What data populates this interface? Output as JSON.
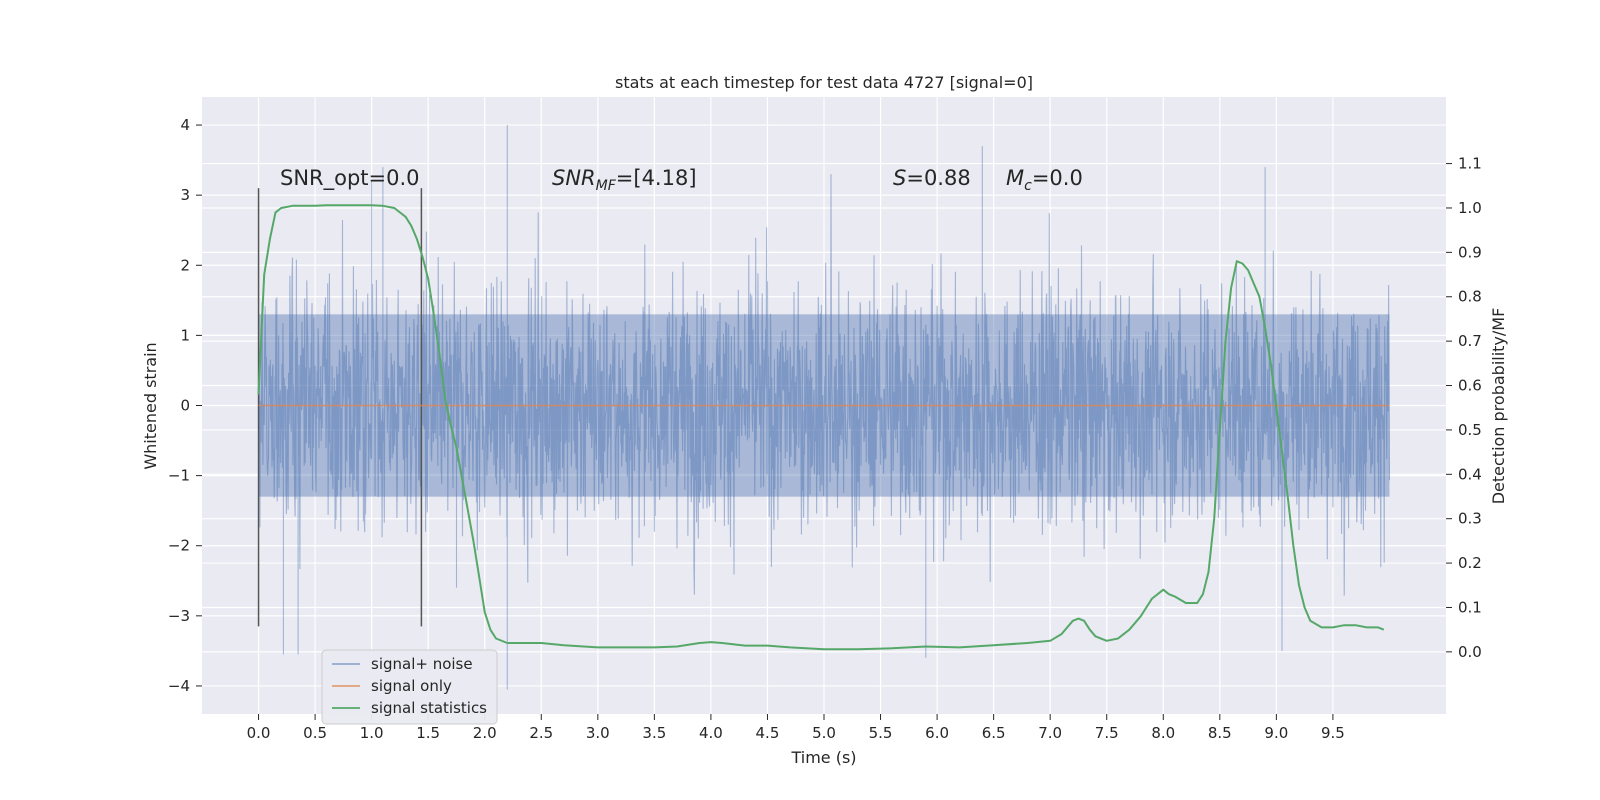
{
  "chart_data": {
    "type": "line",
    "title": "stats at each timestep for test data 4727 [signal=0]",
    "xlabel": "Time (s)",
    "ylabel": "Whitened strain",
    "y2label": "Detection probability/MF",
    "xlim": [
      -0.5,
      10.5
    ],
    "ylim": [
      -4.4,
      4.4
    ],
    "y2lim": [
      -0.14,
      1.25
    ],
    "xticks": [
      "0.0",
      "0.5",
      "1.0",
      "1.5",
      "2.0",
      "2.5",
      "3.0",
      "3.5",
      "4.0",
      "4.5",
      "5.0",
      "5.5",
      "6.0",
      "6.5",
      "7.0",
      "7.5",
      "8.0",
      "8.5",
      "9.0",
      "9.5"
    ],
    "yticks": [
      "4",
      "3",
      "2",
      "1",
      "0",
      "−1",
      "−2",
      "−3",
      "−4"
    ],
    "y2ticks": [
      "1.1",
      "1.0",
      "0.9",
      "0.8",
      "0.7",
      "0.6",
      "0.5",
      "0.4",
      "0.3",
      "0.2",
      "0.1",
      "0.0"
    ],
    "grid": true,
    "legend_position": "lower-left",
    "annotations": {
      "snr_opt": "SNR_opt=0.0",
      "snr_mf_base": "SNR",
      "snr_mf_sub": "MF",
      "snr_mf_value": "=[4.18]",
      "s_label": "S",
      "s_value": "=0.88",
      "mc_base": "M",
      "mc_sub": "c",
      "mc_value": "=0.0"
    },
    "vlines": [
      0.0,
      1.44
    ],
    "series": [
      {
        "name": "signal+ noise",
        "color": "#4c72b0",
        "x_range": [
          0.0,
          10.0
        ],
        "envelope_y": [
          -1.3,
          1.3
        ],
        "extremes": [
          [
            2.2,
            4.0
          ],
          [
            2.2,
            -4.05
          ],
          [
            0.35,
            -3.55
          ],
          [
            0.22,
            -3.55
          ],
          [
            5.9,
            -3.6
          ],
          [
            9.05,
            -3.5
          ],
          [
            8.9,
            3.4
          ],
          [
            6.4,
            3.7
          ],
          [
            1.1,
            3.4
          ],
          [
            1.0,
            3.2
          ],
          [
            1.75,
            -2.6
          ]
        ]
      },
      {
        "name": "signal only",
        "color": "#dd8452",
        "x": [
          0.0,
          10.0
        ],
        "y": [
          0.0,
          0.0
        ]
      },
      {
        "name": "signal statistics",
        "color": "#55a868",
        "axis": "right",
        "x": [
          0.0,
          0.05,
          0.1,
          0.15,
          0.2,
          0.3,
          0.4,
          0.5,
          0.6,
          0.8,
          1.0,
          1.1,
          1.2,
          1.25,
          1.3,
          1.35,
          1.4,
          1.45,
          1.5,
          1.55,
          1.6,
          1.65,
          1.7,
          1.75,
          1.8,
          1.85,
          1.9,
          1.95,
          2.0,
          2.05,
          2.1,
          2.2,
          2.3,
          2.5,
          2.7,
          3.0,
          3.3,
          3.5,
          3.7,
          3.9,
          4.0,
          4.1,
          4.3,
          4.5,
          4.7,
          5.0,
          5.3,
          5.6,
          5.9,
          6.2,
          6.5,
          6.8,
          7.0,
          7.1,
          7.2,
          7.25,
          7.3,
          7.35,
          7.4,
          7.5,
          7.6,
          7.7,
          7.8,
          7.9,
          8.0,
          8.05,
          8.1,
          8.2,
          8.3,
          8.35,
          8.4,
          8.45,
          8.5,
          8.55,
          8.6,
          8.65,
          8.7,
          8.75,
          8.8,
          8.85,
          8.9,
          8.95,
          9.0,
          9.05,
          9.1,
          9.15,
          9.2,
          9.25,
          9.3,
          9.4,
          9.5,
          9.6,
          9.7,
          9.8,
          9.9,
          9.95
        ],
        "y": [
          0.58,
          0.85,
          0.93,
          0.99,
          1.0,
          1.005,
          1.005,
          1.005,
          1.006,
          1.006,
          1.006,
          1.005,
          1.0,
          0.99,
          0.98,
          0.96,
          0.93,
          0.89,
          0.84,
          0.76,
          0.67,
          0.57,
          0.51,
          0.46,
          0.39,
          0.32,
          0.25,
          0.17,
          0.09,
          0.05,
          0.03,
          0.02,
          0.02,
          0.02,
          0.015,
          0.01,
          0.01,
          0.01,
          0.012,
          0.02,
          0.022,
          0.02,
          0.014,
          0.014,
          0.01,
          0.006,
          0.006,
          0.008,
          0.012,
          0.01,
          0.015,
          0.02,
          0.025,
          0.04,
          0.07,
          0.075,
          0.07,
          0.05,
          0.035,
          0.025,
          0.03,
          0.05,
          0.08,
          0.12,
          0.14,
          0.13,
          0.125,
          0.11,
          0.11,
          0.13,
          0.18,
          0.3,
          0.5,
          0.7,
          0.82,
          0.88,
          0.875,
          0.86,
          0.83,
          0.8,
          0.73,
          0.65,
          0.55,
          0.45,
          0.35,
          0.24,
          0.15,
          0.1,
          0.07,
          0.055,
          0.055,
          0.06,
          0.06,
          0.055,
          0.055,
          0.05
        ]
      }
    ]
  }
}
